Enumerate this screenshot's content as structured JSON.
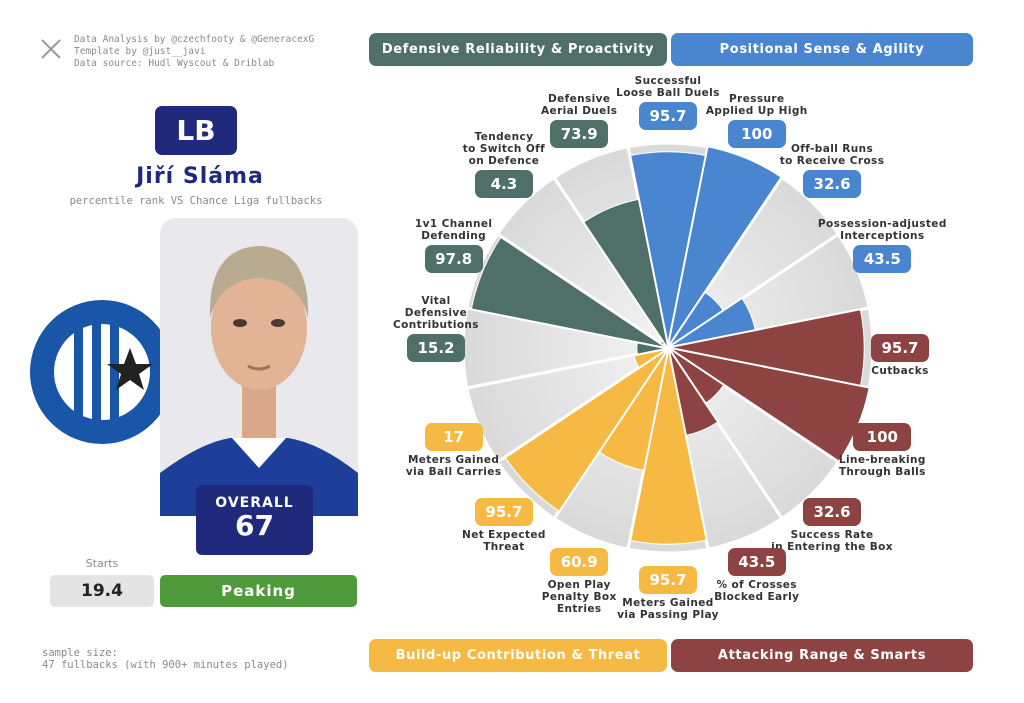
{
  "header": {
    "credits": [
      "Data Analysis by @czechfooty & @GeneracexG",
      "Template by @just__javi",
      "Data source: Hudl Wyscout & Driblab"
    ]
  },
  "player": {
    "position": "LB",
    "name": "Jiří Sláma",
    "subtitle": "percentile rank VS Chance Liga fullbacks",
    "overall_label": "OVERALL",
    "overall": 67,
    "starts_label": "Starts",
    "starts": 19.4,
    "status": "Peaking"
  },
  "footer": {
    "sample_size": "sample size:\n47 fullbacks (with 900+ minutes played)"
  },
  "chart_data": {
    "type": "polar_bar",
    "rlim": [
      0,
      100
    ],
    "series": [
      {
        "name": "Positional Sense & Agility",
        "color": "#4a86d0",
        "categories": [
          "Successful\nLoose Ball Duels",
          "Pressure\nApplied Up High",
          "Off-ball Runs\nto Receive Cross",
          "Possession-adjusted\nInterceptions"
        ],
        "values": [
          95.7,
          100,
          32.6,
          43.5
        ]
      },
      {
        "name": "Attacking Range & Smarts",
        "color": "#8e4343",
        "categories": [
          "Cutbacks",
          "Line-breaking\nThrough Balls",
          "Success Rate\nin Entering the Box",
          "% of Crosses\nBlocked Early"
        ],
        "values": [
          95.7,
          100,
          32.6,
          43.5
        ]
      },
      {
        "name": "Build-up Contribution & Threat",
        "color": "#f6b944",
        "categories": [
          "Meters Gained\nvia Passing Play",
          "Open Play\nPenalty Box\nEntries",
          "Net Expected\nThreat",
          "Meters Gained\nvia Ball Carries"
        ],
        "values": [
          95.7,
          60.9,
          95.7,
          17
        ]
      },
      {
        "name": "Defensive Reliability & Proactivity",
        "color": "#4f7068",
        "categories": [
          "Vital\nDefensive\nContributions",
          "1v1 Channel\nDefending",
          "Tendency\nto Switch Off\non Defence",
          "Defensive\nAerial Duels"
        ],
        "values": [
          15.2,
          97.8,
          4.3,
          73.9
        ]
      }
    ]
  }
}
